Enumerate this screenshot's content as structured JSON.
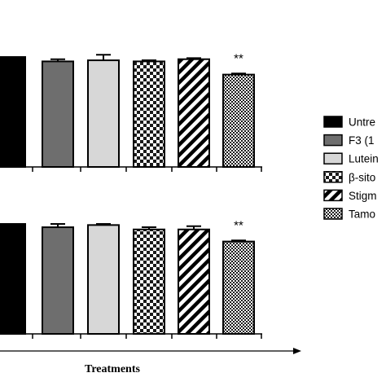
{
  "chart_data": {
    "type": "bar",
    "xlabel": "Treatments",
    "legend_placement": "right",
    "legend": [
      {
        "label": "Untre",
        "pattern": "solid-black"
      },
      {
        "label": "F3 (1",
        "pattern": "solid-darkgray"
      },
      {
        "label": "Lutein",
        "pattern": "solid-lightgray"
      },
      {
        "label": "β-sito",
        "pattern": "checker"
      },
      {
        "label": "Stigm",
        "pattern": "diagonal"
      },
      {
        "label": "Tamo",
        "pattern": "fine-checker"
      }
    ],
    "panels": [
      {
        "values": [
          100,
          96,
          97,
          96,
          98,
          84
        ],
        "errors": [
          0,
          2,
          5,
          1,
          1,
          1
        ],
        "annotations": [
          "",
          "",
          "",
          "",
          "",
          "**"
        ],
        "ylim": [
          0,
          130
        ]
      },
      {
        "values": [
          100,
          97,
          99,
          95,
          95,
          84
        ],
        "errors": [
          0,
          3,
          1,
          2,
          3,
          1
        ],
        "annotations": [
          "",
          "",
          "",
          "",
          "",
          "**"
        ],
        "ylim": [
          0,
          130
        ]
      }
    ]
  },
  "colors": {
    "black": "#000000",
    "dark_gray": "#6e6e6e",
    "light_gray": "#d7d7d7",
    "pattern_black": "#1a1a1a",
    "white": "#ffffff"
  }
}
